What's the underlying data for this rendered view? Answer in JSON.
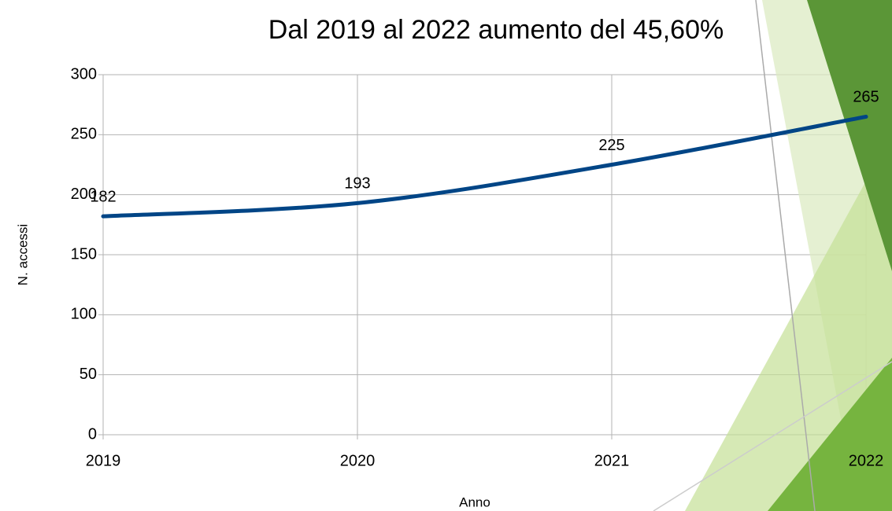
{
  "chart_data": {
    "type": "line",
    "title": "Dal 2019 al 2022 aumento del 45,60%",
    "x_label": "Anno",
    "y_label": "N. accessi",
    "categories": [
      "2019",
      "2020",
      "2021",
      "2022"
    ],
    "series": [
      {
        "name": "N. accessi",
        "color": "#004586",
        "values": [
          182,
          193,
          225,
          265
        ]
      }
    ],
    "ylim": [
      0,
      300
    ],
    "yticks": [
      0,
      50,
      100,
      150,
      200,
      250,
      300
    ],
    "grid": true,
    "smooth": true
  }
}
